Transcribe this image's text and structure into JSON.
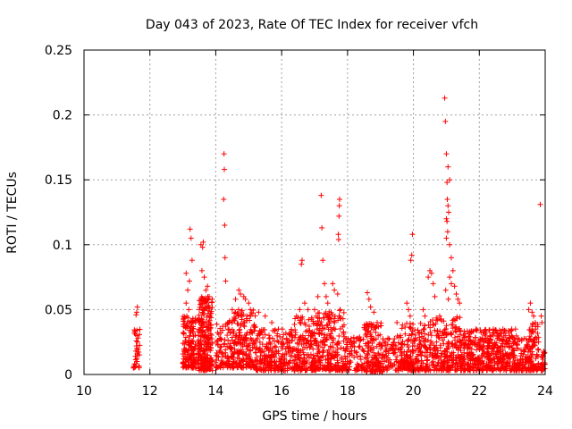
{
  "chart_data": {
    "type": "scatter",
    "title": "Day 043 of 2023, Rate Of TEC Index for receiver vfch",
    "xlabel": "GPS time / hours",
    "ylabel": "ROTI / TECUs",
    "xlim": [
      10,
      24
    ],
    "ylim": [
      0,
      0.25
    ],
    "xticks": [
      "10",
      "12",
      "14",
      "16",
      "18",
      "20",
      "22",
      "24"
    ],
    "yticks": [
      "0",
      "0.05",
      "0.1",
      "0.15",
      "0.2",
      "0.25"
    ],
    "xtick_values": [
      10,
      12,
      14,
      16,
      18,
      20,
      22,
      24
    ],
    "ytick_values": [
      0,
      0.05,
      0.1,
      0.15,
      0.2,
      0.25
    ],
    "grid": true,
    "marker": "+",
    "color": "#ff0000",
    "series": [
      {
        "name": "ROTI",
        "points": [
          [
            11.6,
            0.048
          ],
          [
            11.62,
            0.052
          ],
          [
            11.58,
            0.046
          ],
          [
            11.6,
            0.03
          ],
          [
            11.62,
            0.025
          ],
          [
            11.6,
            0.02
          ],
          [
            11.57,
            0.018
          ],
          [
            11.63,
            0.015
          ],
          [
            11.6,
            0.012
          ],
          [
            11.61,
            0.01
          ],
          [
            11.59,
            0.022
          ],
          [
            11.64,
            0.028
          ],
          [
            11.56,
            0.014
          ],
          [
            13.1,
            0.078
          ],
          [
            13.15,
            0.065
          ],
          [
            13.2,
            0.072
          ],
          [
            13.22,
            0.112
          ],
          [
            13.25,
            0.105
          ],
          [
            13.28,
            0.088
          ],
          [
            13.1,
            0.055
          ],
          [
            13.18,
            0.05
          ],
          [
            13.12,
            0.045
          ],
          [
            13.55,
            0.1
          ],
          [
            13.6,
            0.098
          ],
          [
            13.62,
            0.102
          ],
          [
            13.58,
            0.08
          ],
          [
            13.65,
            0.075
          ],
          [
            13.7,
            0.065
          ],
          [
            13.75,
            0.068
          ],
          [
            13.8,
            0.06
          ],
          [
            14.25,
            0.17
          ],
          [
            14.26,
            0.158
          ],
          [
            14.24,
            0.135
          ],
          [
            14.27,
            0.115
          ],
          [
            14.28,
            0.09
          ],
          [
            14.3,
            0.072
          ],
          [
            14.5,
            0.05
          ],
          [
            14.6,
            0.058
          ],
          [
            14.7,
            0.065
          ],
          [
            14.75,
            0.062
          ],
          [
            14.85,
            0.06
          ],
          [
            14.9,
            0.058
          ],
          [
            15.0,
            0.055
          ],
          [
            15.05,
            0.05
          ],
          [
            14.8,
            0.045
          ],
          [
            15.3,
            0.048
          ],
          [
            15.5,
            0.045
          ],
          [
            15.7,
            0.04
          ],
          [
            15.9,
            0.035
          ],
          [
            16.45,
            0.045
          ],
          [
            16.55,
            0.05
          ],
          [
            16.6,
            0.085
          ],
          [
            16.62,
            0.088
          ],
          [
            16.7,
            0.055
          ],
          [
            16.8,
            0.05
          ],
          [
            17.0,
            0.05
          ],
          [
            17.1,
            0.06
          ],
          [
            17.2,
            0.138
          ],
          [
            17.22,
            0.113
          ],
          [
            17.25,
            0.088
          ],
          [
            17.3,
            0.07
          ],
          [
            17.35,
            0.06
          ],
          [
            17.4,
            0.055
          ],
          [
            17.55,
            0.07
          ],
          [
            17.6,
            0.065
          ],
          [
            17.7,
            0.062
          ],
          [
            17.75,
            0.13
          ],
          [
            17.76,
            0.135
          ],
          [
            17.74,
            0.122
          ],
          [
            17.72,
            0.108
          ],
          [
            17.73,
            0.104
          ],
          [
            17.78,
            0.05
          ],
          [
            18.6,
            0.063
          ],
          [
            18.65,
            0.058
          ],
          [
            18.7,
            0.052
          ],
          [
            18.8,
            0.048
          ],
          [
            18.9,
            0.04
          ],
          [
            19.5,
            0.04
          ],
          [
            19.8,
            0.055
          ],
          [
            19.85,
            0.05
          ],
          [
            19.9,
            0.045
          ],
          [
            19.92,
            0.088
          ],
          [
            19.95,
            0.092
          ],
          [
            19.97,
            0.108
          ],
          [
            20.3,
            0.05
          ],
          [
            20.35,
            0.045
          ],
          [
            20.45,
            0.075
          ],
          [
            20.5,
            0.08
          ],
          [
            20.55,
            0.078
          ],
          [
            20.6,
            0.07
          ],
          [
            20.65,
            0.06
          ],
          [
            20.95,
            0.213
          ],
          [
            20.97,
            0.195
          ],
          [
            21.0,
            0.17
          ],
          [
            21.05,
            0.16
          ],
          [
            21.1,
            0.15
          ],
          [
            21.02,
            0.148
          ],
          [
            21.03,
            0.135
          ],
          [
            21.05,
            0.13
          ],
          [
            21.07,
            0.125
          ],
          [
            21.0,
            0.12
          ],
          [
            21.02,
            0.118
          ],
          [
            21.04,
            0.11
          ],
          [
            21.0,
            0.105
          ],
          [
            21.1,
            0.1
          ],
          [
            21.15,
            0.09
          ],
          [
            21.2,
            0.08
          ],
          [
            21.1,
            0.075
          ],
          [
            21.15,
            0.07
          ],
          [
            21.25,
            0.068
          ],
          [
            21.3,
            0.062
          ],
          [
            21.35,
            0.058
          ],
          [
            21.4,
            0.055
          ],
          [
            20.98,
            0.065
          ],
          [
            21.06,
            0.058
          ],
          [
            21.9,
            0.035
          ],
          [
            22.4,
            0.032
          ],
          [
            22.8,
            0.03
          ],
          [
            23.1,
            0.035
          ],
          [
            23.5,
            0.05
          ],
          [
            23.55,
            0.055
          ],
          [
            23.6,
            0.048
          ],
          [
            23.65,
            0.045
          ],
          [
            23.7,
            0.04
          ],
          [
            23.85,
            0.131
          ],
          [
            23.88,
            0.045
          ],
          [
            23.9,
            0.04
          ]
        ],
        "clusters": [
          [
            11.5,
            11.7,
            0.005,
            0.035,
            25
          ],
          [
            13.0,
            13.4,
            0.005,
            0.045,
            160
          ],
          [
            13.45,
            13.9,
            0.003,
            0.06,
            260
          ],
          [
            14.0,
            14.4,
            0.005,
            0.04,
            80
          ],
          [
            14.4,
            15.2,
            0.005,
            0.05,
            220
          ],
          [
            15.2,
            16.3,
            0.003,
            0.035,
            230
          ],
          [
            16.3,
            17.0,
            0.003,
            0.045,
            180
          ],
          [
            17.0,
            17.9,
            0.003,
            0.05,
            240
          ],
          [
            17.9,
            18.5,
            0.003,
            0.03,
            90
          ],
          [
            18.5,
            19.1,
            0.002,
            0.04,
            160
          ],
          [
            19.1,
            19.6,
            0.003,
            0.03,
            70
          ],
          [
            19.6,
            20.5,
            0.003,
            0.04,
            230
          ],
          [
            20.5,
            21.5,
            0.003,
            0.045,
            250
          ],
          [
            21.5,
            22.3,
            0.003,
            0.035,
            220
          ],
          [
            22.3,
            23.0,
            0.003,
            0.035,
            200
          ],
          [
            23.0,
            23.5,
            0.003,
            0.03,
            110
          ],
          [
            23.5,
            23.8,
            0.003,
            0.04,
            90
          ],
          [
            23.85,
            24.0,
            0.003,
            0.02,
            30
          ]
        ]
      }
    ]
  }
}
